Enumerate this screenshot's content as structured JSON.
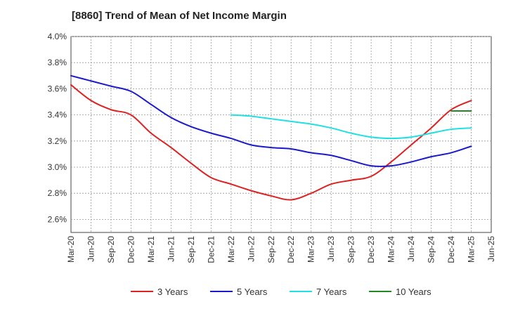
{
  "chart_data": {
    "type": "line",
    "title": "[8860]  Trend of Mean of Net Income Margin",
    "xlabel": "",
    "ylabel": "",
    "ylim": [
      2.5,
      4.0
    ],
    "y_ticks": [
      "2.6%",
      "2.8%",
      "3.0%",
      "3.2%",
      "3.4%",
      "3.6%",
      "3.8%",
      "4.0%"
    ],
    "y_tick_values": [
      2.6,
      2.8,
      3.0,
      3.2,
      3.4,
      3.6,
      3.8,
      4.0
    ],
    "x_ticks": [
      "Mar-20",
      "Jun-20",
      "Sep-20",
      "Dec-20",
      "Mar-21",
      "Jun-21",
      "Sep-21",
      "Dec-21",
      "Mar-22",
      "Jun-22",
      "Sep-22",
      "Dec-22",
      "Mar-23",
      "Jun-23",
      "Sep-23",
      "Dec-23",
      "Mar-24",
      "Jun-24",
      "Sep-24",
      "Dec-24",
      "Mar-25",
      "Jun-25"
    ],
    "grid": true,
    "legend_position": "bottom",
    "series": [
      {
        "name": "3 Years",
        "color": "#dd2222",
        "x": [
          "Mar-20",
          "Jun-20",
          "Sep-20",
          "Dec-20",
          "Mar-21",
          "Jun-21",
          "Sep-21",
          "Dec-21",
          "Mar-22",
          "Jun-22",
          "Sep-22",
          "Dec-22",
          "Mar-23",
          "Jun-23",
          "Sep-23",
          "Dec-23",
          "Mar-24",
          "Jun-24",
          "Sep-24",
          "Dec-24",
          "Mar-25"
        ],
        "y": [
          3.63,
          3.51,
          3.44,
          3.4,
          3.26,
          3.15,
          3.03,
          2.92,
          2.87,
          2.82,
          2.78,
          2.75,
          2.8,
          2.87,
          2.9,
          2.93,
          3.04,
          3.17,
          3.3,
          3.44,
          3.51
        ]
      },
      {
        "name": "5 Years",
        "color": "#1a1acc",
        "x": [
          "Mar-20",
          "Jun-20",
          "Sep-20",
          "Dec-20",
          "Mar-21",
          "Jun-21",
          "Sep-21",
          "Dec-21",
          "Mar-22",
          "Jun-22",
          "Sep-22",
          "Dec-22",
          "Mar-23",
          "Jun-23",
          "Sep-23",
          "Dec-23",
          "Mar-24",
          "Jun-24",
          "Sep-24",
          "Dec-24",
          "Mar-25"
        ],
        "y": [
          3.7,
          3.66,
          3.62,
          3.58,
          3.48,
          3.38,
          3.31,
          3.26,
          3.22,
          3.17,
          3.15,
          3.14,
          3.11,
          3.09,
          3.05,
          3.01,
          3.01,
          3.04,
          3.08,
          3.11,
          3.16
        ]
      },
      {
        "name": "7 Years",
        "color": "#22e0e0",
        "x": [
          "Mar-22",
          "Jun-22",
          "Sep-22",
          "Dec-22",
          "Mar-23",
          "Jun-23",
          "Sep-23",
          "Dec-23",
          "Mar-24",
          "Jun-24",
          "Sep-24",
          "Dec-24",
          "Mar-25"
        ],
        "y": [
          3.4,
          3.39,
          3.37,
          3.35,
          3.33,
          3.3,
          3.26,
          3.23,
          3.22,
          3.23,
          3.26,
          3.29,
          3.3
        ]
      },
      {
        "name": "10 Years",
        "color": "#228822",
        "x": [
          "Dec-24",
          "Mar-25"
        ],
        "y": [
          3.43,
          3.43
        ]
      }
    ]
  }
}
